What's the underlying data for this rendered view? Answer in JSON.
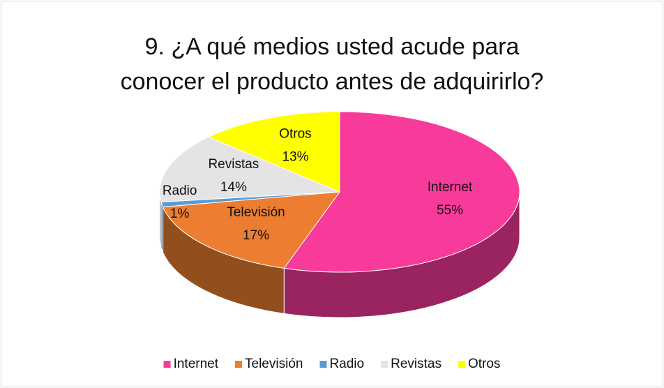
{
  "chart_data": {
    "type": "pie",
    "title": "9. ¿A qué medios usted acude para conocer el producto antes de adquirirlo?",
    "categories": [
      "Internet",
      "Televisión",
      "Radio",
      "Revistas",
      "Otros"
    ],
    "values": [
      55,
      17,
      1,
      14,
      13
    ],
    "value_labels": [
      "55%",
      "17%",
      "1%",
      "14%",
      "13%"
    ],
    "colors": [
      "#f83a9b",
      "#ed7d31",
      "#5b9bd5",
      "#e4e4e4",
      "#ffff00"
    ],
    "legend": "bottom"
  }
}
